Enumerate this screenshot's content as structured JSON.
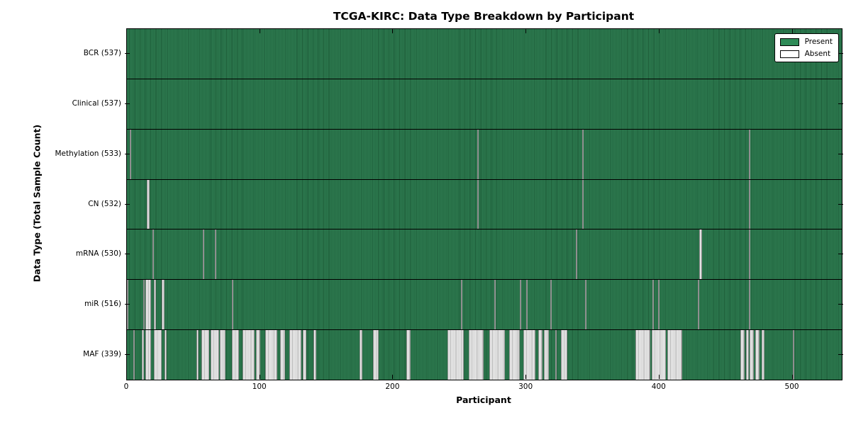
{
  "figure": {
    "background": "#ffffff"
  },
  "chart_data": {
    "type": "heatmap",
    "title": "TCGA-KIRC: Data Type Breakdown by Participant",
    "xlabel": "Participant",
    "ylabel": "Data Type (Total Sample Count)",
    "x_ticks": [
      0,
      100,
      200,
      300,
      400,
      500
    ],
    "x_range": [
      0,
      537
    ],
    "n_participants": 537,
    "grid": false,
    "colors": {
      "present_fill": "#2d7a4f",
      "present_edge": "#1d5c38",
      "absent_fill": "#ededed",
      "absent_edge": "#8f8f8f",
      "legend_present": "#2e8b57",
      "legend_absent": "#ffffff"
    },
    "legend": {
      "position": "upper right",
      "entries": [
        {
          "label": "Present",
          "color": "#2e8b57"
        },
        {
          "label": "Absent",
          "color": "#ffffff"
        }
      ]
    },
    "rows": [
      {
        "name": "BCR",
        "label": "BCR (537)",
        "total": 537,
        "absent_ranges": []
      },
      {
        "name": "Clinical",
        "label": "Clinical (537)",
        "total": 537,
        "absent_ranges": []
      },
      {
        "name": "Methylation",
        "label": "Methylation (533)",
        "total": 533,
        "absent_ranges": [
          [
            2,
            2
          ],
          [
            263,
            263
          ],
          [
            342,
            342
          ],
          [
            467,
            467
          ]
        ]
      },
      {
        "name": "CN",
        "label": "CN (532)",
        "total": 532,
        "absent_ranges": [
          [
            15,
            16
          ],
          [
            263,
            263
          ],
          [
            342,
            342
          ],
          [
            467,
            467
          ]
        ]
      },
      {
        "name": "mRNA",
        "label": "mRNA (530)",
        "total": 530,
        "absent_ranges": [
          [
            19,
            19
          ],
          [
            57,
            57
          ],
          [
            66,
            66
          ],
          [
            337,
            337
          ],
          [
            430,
            431
          ],
          [
            467,
            467
          ]
        ]
      },
      {
        "name": "miR",
        "label": "miR (516)",
        "total": 516,
        "absent_ranges": [
          [
            0,
            0
          ],
          [
            12,
            12
          ],
          [
            14,
            17
          ],
          [
            20,
            21
          ],
          [
            26,
            27
          ],
          [
            79,
            79
          ],
          [
            251,
            251
          ],
          [
            276,
            276
          ],
          [
            295,
            295
          ],
          [
            300,
            300
          ],
          [
            318,
            318
          ],
          [
            344,
            344
          ],
          [
            395,
            395
          ],
          [
            399,
            399
          ],
          [
            429,
            429
          ],
          [
            467,
            467
          ]
        ]
      },
      {
        "name": "MAF",
        "label": "MAF (339)",
        "total": 339,
        "absent_ranges": [
          [
            5,
            5
          ],
          [
            11,
            12
          ],
          [
            14,
            17
          ],
          [
            20,
            25
          ],
          [
            28,
            29
          ],
          [
            52,
            53
          ],
          [
            56,
            61
          ],
          [
            63,
            68
          ],
          [
            70,
            73
          ],
          [
            79,
            83
          ],
          [
            87,
            95
          ],
          [
            97,
            99
          ],
          [
            104,
            112
          ],
          [
            115,
            118
          ],
          [
            122,
            130
          ],
          [
            132,
            134
          ],
          [
            140,
            141
          ],
          [
            175,
            176
          ],
          [
            185,
            188
          ],
          [
            210,
            212
          ],
          [
            241,
            252
          ],
          [
            257,
            267
          ],
          [
            272,
            283
          ],
          [
            287,
            294
          ],
          [
            298,
            306
          ],
          [
            309,
            311
          ],
          [
            313,
            316
          ],
          [
            322,
            322
          ],
          [
            326,
            330
          ],
          [
            382,
            392
          ],
          [
            394,
            404
          ],
          [
            406,
            416
          ],
          [
            461,
            463
          ],
          [
            465,
            466
          ],
          [
            468,
            470
          ],
          [
            472,
            474
          ],
          [
            477,
            478
          ],
          [
            500,
            500
          ]
        ]
      }
    ]
  }
}
